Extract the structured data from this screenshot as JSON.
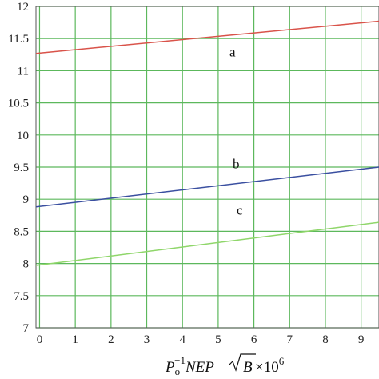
{
  "chart_data": {
    "type": "line",
    "xlim": [
      -0.1,
      9.5
    ],
    "ylim": [
      7,
      12
    ],
    "grid": true,
    "x_ticks": [
      "0",
      "1",
      "2",
      "3",
      "4",
      "5",
      "6",
      "7",
      "8",
      "9"
    ],
    "y_ticks": [
      "7",
      "7.5",
      "8",
      "8.5",
      "9",
      "9.5",
      "10",
      "10.5",
      "11",
      "11.5",
      "12"
    ],
    "xlabel": {
      "p": "P",
      "o": "o",
      "exp": "−1",
      "nep": "NEP",
      "b": "B",
      "times": " ×10",
      "pow": "6"
    },
    "ylabel": "",
    "series": [
      {
        "label": "a",
        "color": "#d9534a",
        "x": [
          -0.1,
          9.5
        ],
        "y": [
          11.27,
          11.77
        ]
      },
      {
        "label": "b",
        "color": "#3a4fa0",
        "x": [
          -0.1,
          9.5
        ],
        "y": [
          8.88,
          9.5
        ]
      },
      {
        "label": "c",
        "color": "#8fd66a",
        "x": [
          -0.1,
          9.5
        ],
        "y": [
          7.97,
          8.64
        ]
      }
    ],
    "annotations": [
      {
        "text": "a",
        "x": 5.4,
        "y": 11.22
      },
      {
        "text": "b",
        "x": 5.5,
        "y": 9.48
      },
      {
        "text": "c",
        "x": 5.6,
        "y": 8.76
      }
    ]
  }
}
